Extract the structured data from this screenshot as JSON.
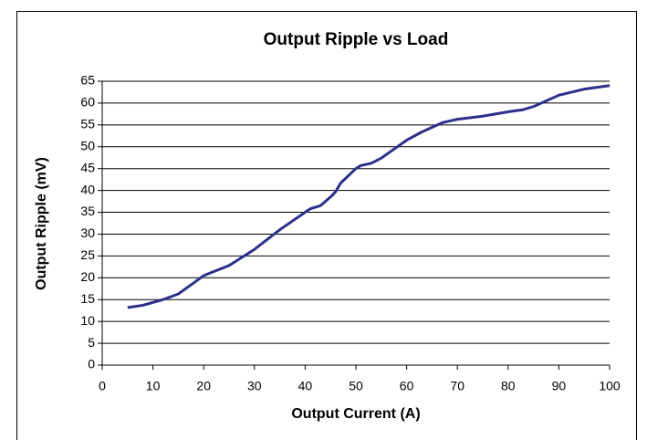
{
  "chart_data": {
    "type": "line",
    "title": "Output Ripple vs Load",
    "xlabel": "Output Current (A)",
    "ylabel": "Output Ripple (mV)",
    "x": [
      5,
      8,
      12,
      15,
      18,
      20,
      25,
      30,
      35,
      40,
      41,
      43,
      45,
      46,
      47,
      50,
      51,
      53,
      55,
      60,
      63,
      67,
      70,
      75,
      80,
      83,
      85,
      90,
      95,
      100
    ],
    "series": [
      {
        "color": "#2b2f8a",
        "values": [
          13.2,
          13.7,
          15,
          16.3,
          18.8,
          20.5,
          22.8,
          26.5,
          31,
          35,
          35.8,
          36.5,
          38.5,
          39.7,
          41.7,
          45,
          45.7,
          46.2,
          47.4,
          51.5,
          53.4,
          55.5,
          56.3,
          57,
          58,
          58.5,
          59.2,
          61.8,
          63.2,
          64
        ]
      }
    ],
    "xlim": [
      0,
      100
    ],
    "xticks": [
      0,
      10,
      20,
      30,
      40,
      50,
      60,
      70,
      80,
      90,
      100
    ],
    "ylim": [
      0,
      65
    ],
    "yticks": [
      0,
      5,
      10,
      15,
      20,
      25,
      30,
      35,
      40,
      45,
      50,
      55,
      60,
      65
    ],
    "grid": true
  }
}
